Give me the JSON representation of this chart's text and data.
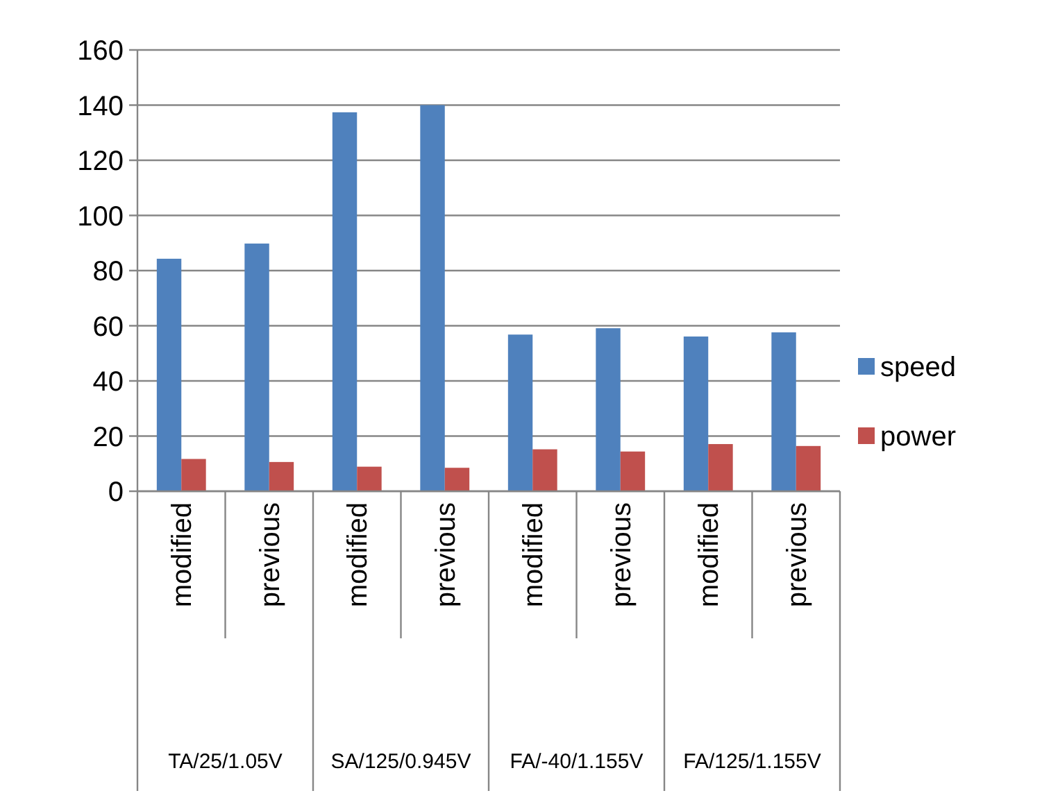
{
  "chart_data": {
    "type": "bar",
    "categories": [
      "modified",
      "previous",
      "modified",
      "previous",
      "modified",
      "previous",
      "modified",
      "previous"
    ],
    "series": [
      {
        "name": "speed",
        "color": "#4f81bd",
        "values": [
          84.3,
          89.8,
          137.4,
          140,
          56.8,
          59.1,
          56.1,
          57.6
        ]
      },
      {
        "name": "power",
        "color": "#c0504d",
        "values": [
          11.7,
          10.6,
          8.9,
          8.5,
          15.2,
          14.4,
          17.1,
          16.4
        ]
      }
    ],
    "annotations": [
      "TA/25/1.05V",
      "SA/125/0.945V",
      "FA/-40/1.155V",
      "FA/125/1.155V"
    ],
    "ylim": [
      0,
      160
    ],
    "yticks": [
      0,
      20,
      40,
      60,
      80,
      100,
      120,
      140,
      160
    ],
    "grid": "y",
    "legend": "right"
  }
}
